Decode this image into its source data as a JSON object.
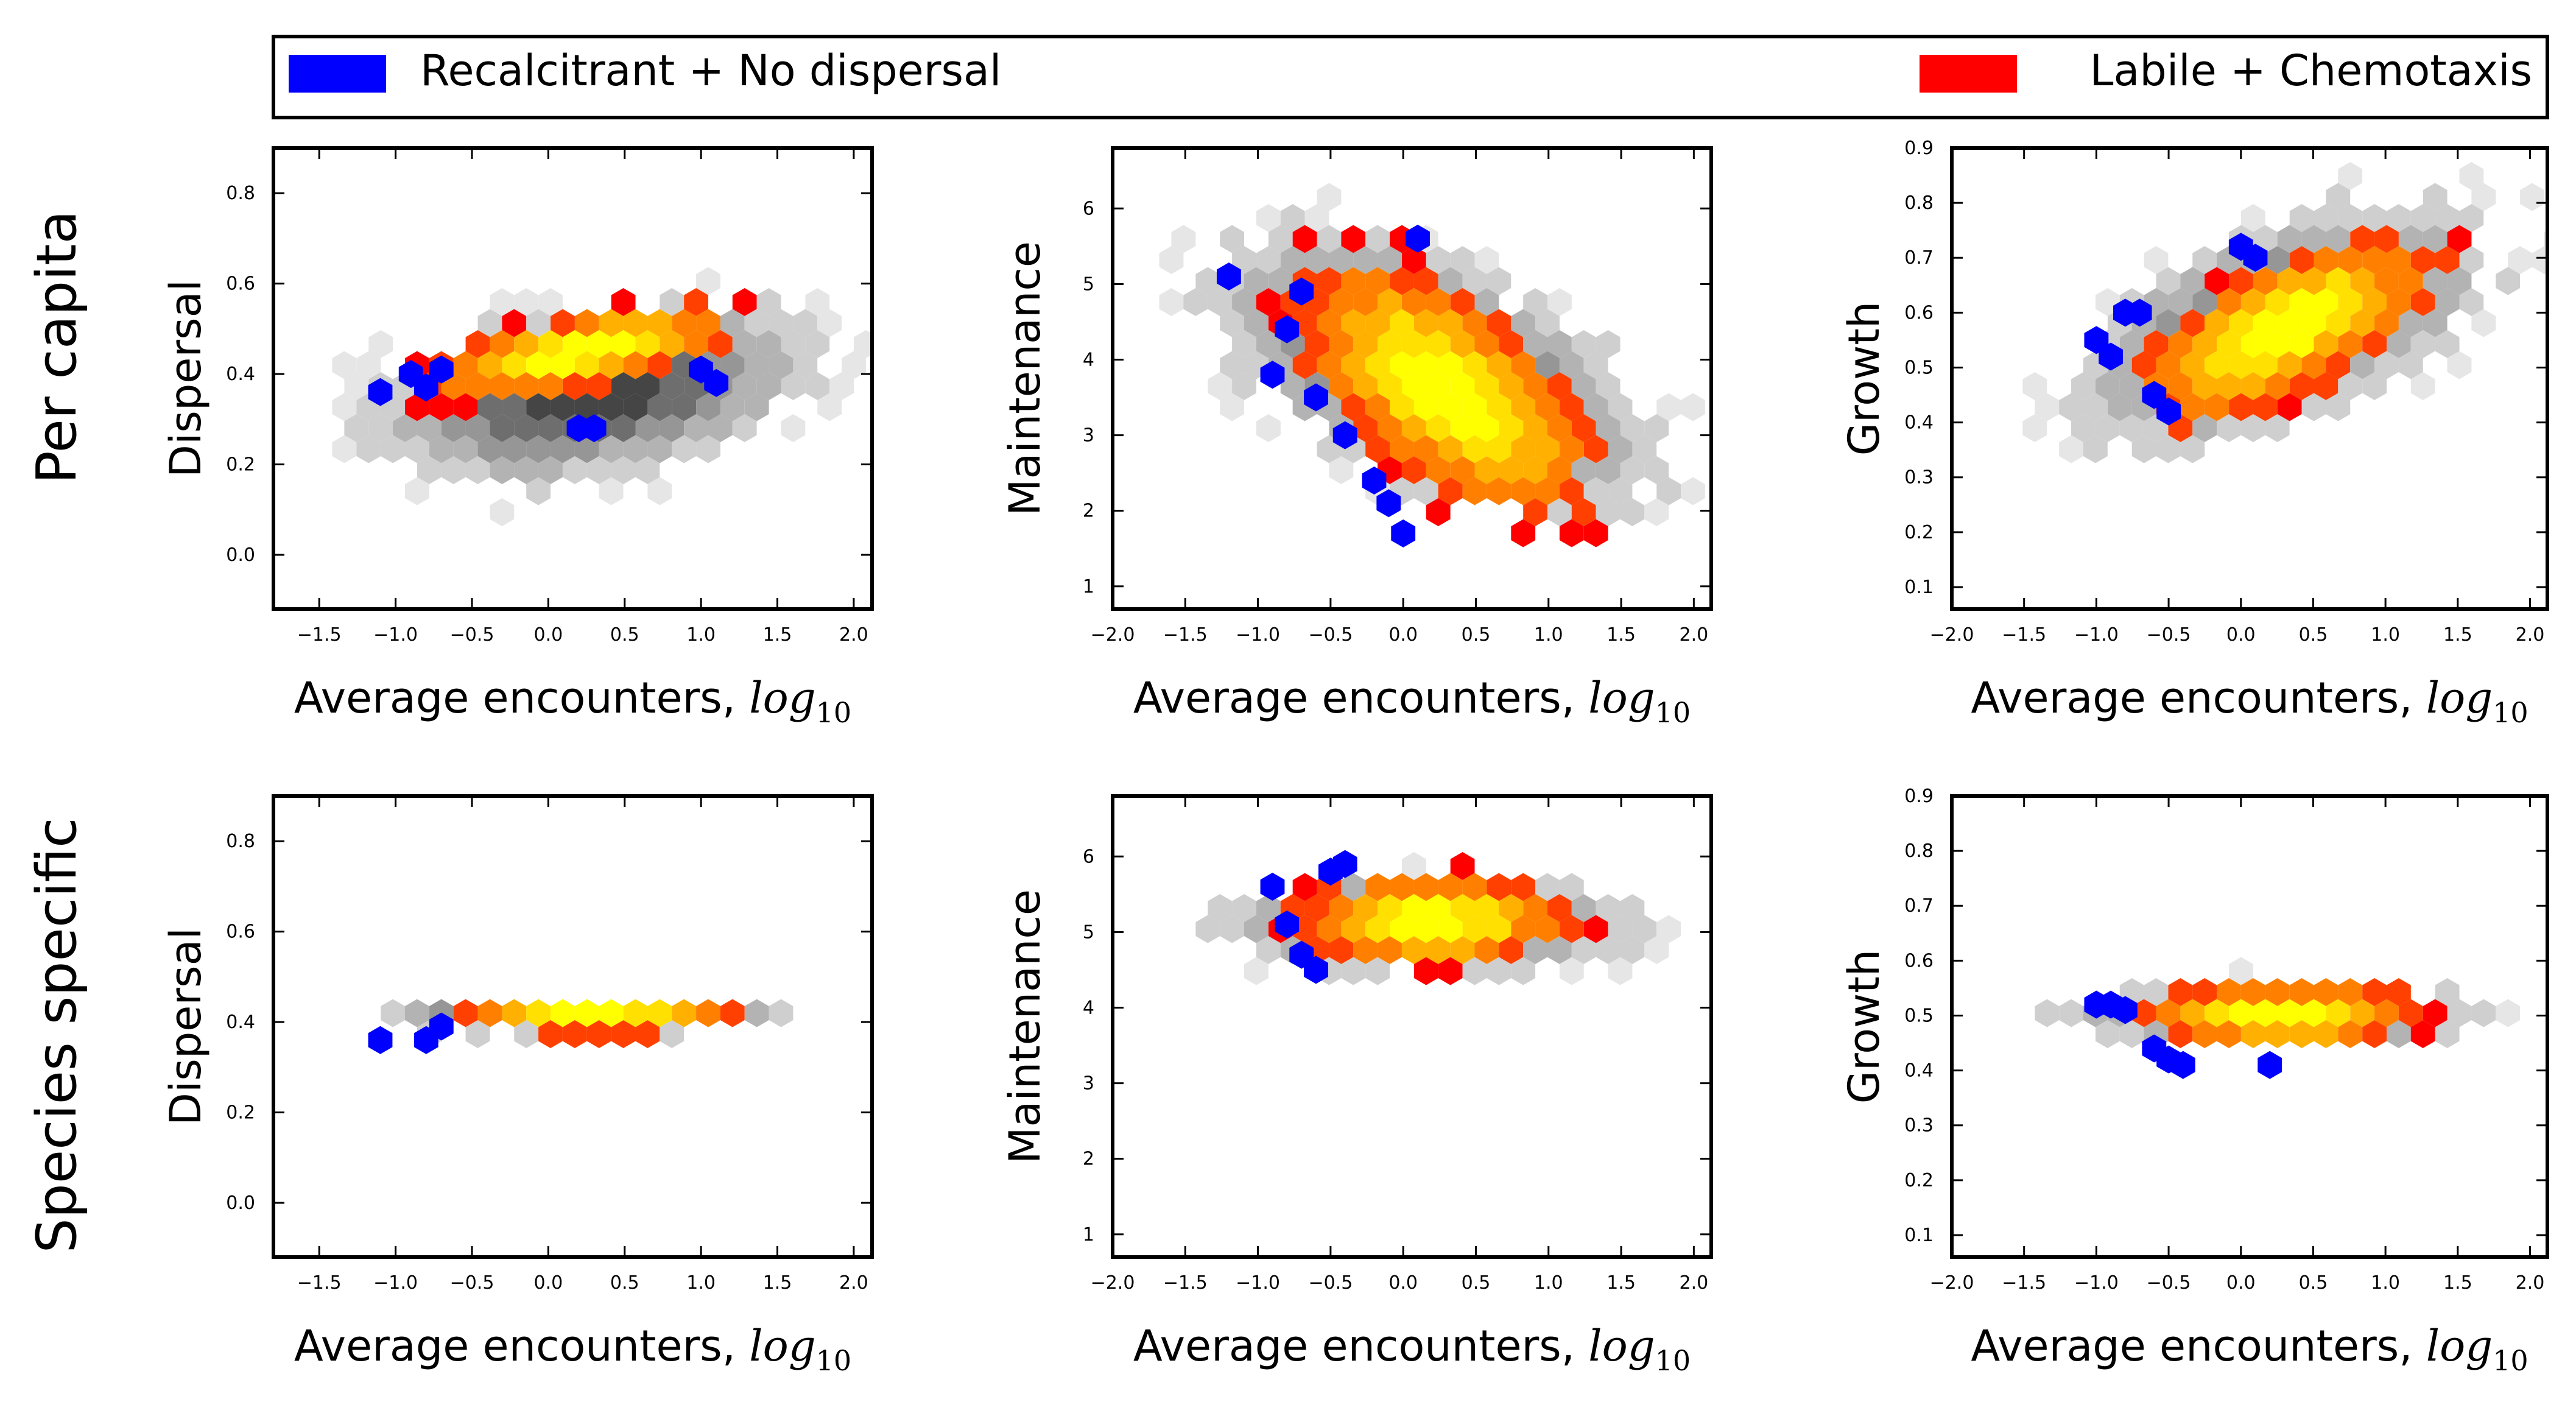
{
  "legend": {
    "placement": "top",
    "entries": [
      {
        "label": "Recalcitrant + No dispersal",
        "color": "#0000ff"
      },
      {
        "label": "Labile + Chemotaxis",
        "color": "#ff0000"
      }
    ]
  },
  "row_labels": [
    "Per capita",
    "Species specific"
  ],
  "colors": {
    "recalcitrant": "#0000ff",
    "labile_ramp": [
      "#ff0000",
      "#ff4000",
      "#ff8000",
      "#ffb000",
      "#ffe000",
      "#ffff00"
    ],
    "background_ramp": [
      "#e6e6e6",
      "#cfcfcf",
      "#b3b3b3",
      "#969696",
      "#6e6e6e",
      "#454545"
    ]
  },
  "chart_data": [
    {
      "type": "hexbin",
      "row": "Per capita",
      "title": "",
      "xlabel": "Average encounters, log10",
      "ylabel": "Dispersal",
      "xlim": [
        -1.8,
        2.12
      ],
      "ylim": [
        -0.12,
        0.9
      ],
      "xticks": [
        "-1.5",
        "-1.0",
        "-0.5",
        "0.0",
        "0.5",
        "1.0",
        "1.5",
        "2.0"
      ],
      "yticks": [
        "0.0",
        "0.2",
        "0.4",
        "0.6",
        "0.8"
      ],
      "grid": false,
      "gray_cloud": {
        "cx": 0.3,
        "cy": 0.36,
        "sx": 0.85,
        "sy": 0.12,
        "rho": 0.35
      },
      "labile_cloud": {
        "cx": 0.2,
        "cy": 0.45,
        "sx": 0.6,
        "sy": 0.06,
        "rho": 0.65
      },
      "blue_points": [
        [
          -1.1,
          0.36
        ],
        [
          -0.9,
          0.4
        ],
        [
          -0.8,
          0.37
        ],
        [
          0.2,
          0.28
        ],
        [
          0.3,
          0.28
        ],
        [
          1.0,
          0.41
        ],
        [
          1.1,
          0.38
        ],
        [
          -0.7,
          0.41
        ]
      ]
    },
    {
      "type": "hexbin",
      "row": "Per capita",
      "title": "",
      "xlabel": "Average encounters, log10",
      "ylabel": "Maintenance",
      "xlim": [
        -2.0,
        2.12
      ],
      "ylim": [
        0.7,
        6.8
      ],
      "xticks": [
        "-2.0",
        "-1.5",
        "-1.0",
        "-0.5",
        "0.0",
        "0.5",
        "1.0",
        "1.5",
        "2.0"
      ],
      "yticks": [
        "1",
        "2",
        "3",
        "4",
        "5",
        "6"
      ],
      "grid": false,
      "gray_cloud": {
        "cx": 0.2,
        "cy": 3.8,
        "sx": 0.9,
        "sy": 1.1,
        "rho": -0.55
      },
      "labile_cloud": {
        "cx": 0.3,
        "cy": 3.6,
        "sx": 0.6,
        "sy": 1.0,
        "rho": -0.6
      },
      "blue_points": [
        [
          -1.2,
          5.1
        ],
        [
          -0.8,
          4.4
        ],
        [
          -0.9,
          3.8
        ],
        [
          -0.6,
          3.5
        ],
        [
          -0.4,
          3.0
        ],
        [
          -0.2,
          2.4
        ],
        [
          -0.1,
          2.1
        ],
        [
          0.0,
          1.7
        ],
        [
          -0.7,
          4.9
        ],
        [
          0.1,
          5.6
        ]
      ]
    },
    {
      "type": "hexbin",
      "row": "Per capita",
      "title": "",
      "xlabel": "Average encounters, log10",
      "ylabel": "Growth",
      "xlim": [
        -2.0,
        2.12
      ],
      "ylim": [
        0.06,
        0.9
      ],
      "xticks": [
        "-2.0",
        "-1.5",
        "-1.0",
        "-0.5",
        "0.0",
        "0.5",
        "1.0",
        "1.5",
        "2.0"
      ],
      "yticks": [
        "0.1",
        "0.2",
        "0.3",
        "0.4",
        "0.5",
        "0.6",
        "0.7",
        "0.8",
        "0.9"
      ],
      "grid": false,
      "gray_cloud": {
        "cx": 0.3,
        "cy": 0.58,
        "sx": 0.85,
        "sy": 0.13,
        "rho": 0.55
      },
      "labile_cloud": {
        "cx": 0.3,
        "cy": 0.57,
        "sx": 0.6,
        "sy": 0.1,
        "rho": 0.65
      },
      "blue_points": [
        [
          -1.0,
          0.55
        ],
        [
          -0.9,
          0.52
        ],
        [
          -0.8,
          0.6
        ],
        [
          -0.7,
          0.6
        ],
        [
          -0.6,
          0.45
        ],
        [
          -0.5,
          0.42
        ],
        [
          0.0,
          0.72
        ],
        [
          0.1,
          0.7
        ]
      ]
    },
    {
      "type": "hexbin",
      "row": "Species specific",
      "title": "",
      "xlabel": "Average encounters, log10",
      "ylabel": "Dispersal",
      "xlim": [
        -1.8,
        2.12
      ],
      "ylim": [
        -0.12,
        0.9
      ],
      "xticks": [
        "-1.5",
        "-1.0",
        "-0.5",
        "0.0",
        "0.5",
        "1.0",
        "1.5",
        "2.0"
      ],
      "yticks": [
        "0.0",
        "0.2",
        "0.4",
        "0.6",
        "0.8"
      ],
      "grid": false,
      "gray_cloud": {
        "cx": 0.2,
        "cy": 0.41,
        "sx": 0.85,
        "sy": 0.025,
        "rho": 0.0
      },
      "labile_cloud": {
        "cx": 0.3,
        "cy": 0.41,
        "sx": 0.55,
        "sy": 0.022,
        "rho": 0.0
      },
      "blue_points": [
        [
          -1.1,
          0.36
        ],
        [
          -0.8,
          0.36
        ],
        [
          -0.7,
          0.39
        ]
      ]
    },
    {
      "type": "hexbin",
      "row": "Species specific",
      "title": "",
      "xlabel": "Average encounters, log10",
      "ylabel": "Maintenance",
      "xlim": [
        -2.0,
        2.12
      ],
      "ylim": [
        0.7,
        6.8
      ],
      "xticks": [
        "-2.0",
        "-1.5",
        "-1.0",
        "-0.5",
        "0.0",
        "0.5",
        "1.0",
        "1.5",
        "2.0"
      ],
      "yticks": [
        "1",
        "2",
        "3",
        "4",
        "5",
        "6"
      ],
      "grid": false,
      "gray_cloud": {
        "cx": 0.2,
        "cy": 5.1,
        "sx": 0.85,
        "sy": 0.38,
        "rho": 0.0
      },
      "labile_cloud": {
        "cx": 0.2,
        "cy": 5.15,
        "sx": 0.55,
        "sy": 0.35,
        "rho": 0.0
      },
      "blue_points": [
        [
          -0.9,
          5.6
        ],
        [
          -0.8,
          5.1
        ],
        [
          -0.7,
          4.7
        ],
        [
          -0.5,
          5.8
        ],
        [
          -0.4,
          5.9
        ],
        [
          -0.6,
          4.5
        ]
      ]
    },
    {
      "type": "hexbin",
      "row": "Species specific",
      "title": "",
      "xlabel": "Average encounters, log10",
      "ylabel": "Growth",
      "xlim": [
        -2.0,
        2.12
      ],
      "ylim": [
        0.06,
        0.9
      ],
      "xticks": [
        "-2.0",
        "-1.5",
        "-1.0",
        "-0.5",
        "0.0",
        "0.5",
        "1.0",
        "1.5",
        "2.0"
      ],
      "yticks": [
        "0.1",
        "0.2",
        "0.3",
        "0.4",
        "0.5",
        "0.6",
        "0.7",
        "0.8",
        "0.9"
      ],
      "grid": false,
      "gray_cloud": {
        "cx": 0.2,
        "cy": 0.5,
        "sx": 0.85,
        "sy": 0.035,
        "rho": 0.0
      },
      "labile_cloud": {
        "cx": 0.3,
        "cy": 0.5,
        "sx": 0.55,
        "sy": 0.035,
        "rho": 0.0
      },
      "blue_points": [
        [
          -1.0,
          0.52
        ],
        [
          -0.9,
          0.52
        ],
        [
          -0.8,
          0.51
        ],
        [
          -0.6,
          0.44
        ],
        [
          -0.5,
          0.42
        ],
        [
          -0.4,
          0.41
        ],
        [
          0.2,
          0.41
        ]
      ]
    }
  ]
}
